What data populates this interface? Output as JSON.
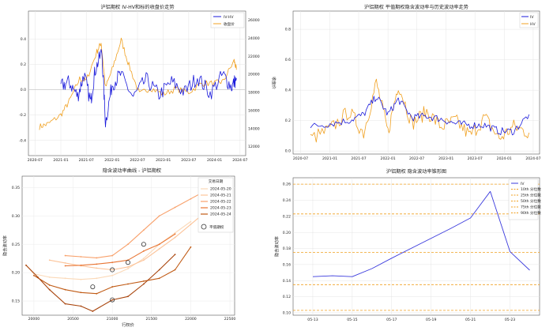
{
  "chart_data": [
    {
      "type": "line",
      "title": "沪铝期权 IV-HV和标的收盘价走势",
      "ylabel": "",
      "y2label": "收盘价",
      "x_ticks": [
        "2020-07",
        "2021-01",
        "2021-07",
        "2022-01",
        "2022-07",
        "2023-01",
        "2023-07",
        "2024-01",
        "2024-07"
      ],
      "y_ticks": [
        "-0.4",
        "-0.2",
        "0.0",
        "0.2",
        "0.4"
      ],
      "ylim": [
        -0.52,
        0.62
      ],
      "y2_ticks": [
        "12000",
        "14000",
        "16000",
        "18000",
        "20000",
        "22000",
        "24000",
        "26000"
      ],
      "y2lim": [
        11000,
        27000
      ],
      "legend": {
        "position": "top-right"
      },
      "series": [
        {
          "name": "IV-HV",
          "color": "#1a1adb",
          "x": [
            "2021-01-01",
            "2021-03-01",
            "2021-05-01",
            "2021-06-15",
            "2021-08-01",
            "2021-09-01",
            "2021-10-20",
            "2021-11-15",
            "2022-01-01",
            "2022-03-01",
            "2022-06-01",
            "2022-09-01",
            "2022-12-01",
            "2023-03-01",
            "2023-06-01",
            "2023-09-01",
            "2023-12-01",
            "2024-03-01",
            "2024-05-01",
            "2024-06-05"
          ],
          "values": [
            0.03,
            0.06,
            -0.05,
            0.12,
            -0.1,
            0.15,
            0.3,
            -0.26,
            0.04,
            0.12,
            -0.06,
            0.08,
            -0.04,
            0.06,
            -0.02,
            0.1,
            -0.03,
            0.12,
            0.02,
            0.09
          ]
        },
        {
          "name": "收盘价",
          "color": "#f0a020",
          "axis": "right",
          "x": [
            "2020-08-01",
            "2020-10-01",
            "2021-01-01",
            "2021-03-01",
            "2021-05-15",
            "2021-07-01",
            "2021-09-15",
            "2021-10-15",
            "2021-11-15",
            "2022-01-01",
            "2022-03-07",
            "2022-05-01",
            "2022-07-15",
            "2022-10-01",
            "2023-01-01",
            "2023-04-01",
            "2023-07-01",
            "2023-10-01",
            "2024-01-01",
            "2024-03-01",
            "2024-05-20",
            "2024-06-05"
          ],
          "values": [
            14200,
            14500,
            15500,
            17000,
            19500,
            19300,
            22500,
            23500,
            18500,
            20500,
            23800,
            21000,
            17800,
            18500,
            17800,
            18400,
            18000,
            19000,
            19000,
            19200,
            21500,
            20500
          ]
        }
      ]
    },
    {
      "type": "line",
      "title": "沪铝期权 平值期权隐含波动率与历史波动率走势",
      "x_ticks": [
        "2020-07",
        "2021-01",
        "2021-07",
        "2022-01",
        "2022-07",
        "2023-01",
        "2023-07",
        "2024-01",
        "2024-07"
      ],
      "y_ticks": [
        "0.0",
        "0.2",
        "0.4",
        "0.6",
        "0.8"
      ],
      "ylim": [
        -0.02,
        0.92
      ],
      "legend": {
        "position": "top-right"
      },
      "series": [
        {
          "name": "IV",
          "color": "#1a1adb",
          "x": [
            "2020-09-01",
            "2021-01-01",
            "2021-05-01",
            "2021-08-01",
            "2021-10-20",
            "2022-01-01",
            "2022-03-07",
            "2022-06-01",
            "2022-09-01",
            "2022-12-01",
            "2023-03-01",
            "2023-06-01",
            "2023-09-01",
            "2023-12-01",
            "2024-03-01",
            "2024-06-05"
          ],
          "values": [
            0.16,
            0.18,
            0.2,
            0.24,
            0.36,
            0.24,
            0.34,
            0.22,
            0.23,
            0.21,
            0.18,
            0.17,
            0.17,
            0.13,
            0.13,
            0.24
          ]
        },
        {
          "name": "HV",
          "color": "#f0a020",
          "x": [
            "2020-09-01",
            "2021-01-01",
            "2021-05-01",
            "2021-08-01",
            "2021-10-20",
            "2022-01-01",
            "2022-03-07",
            "2022-06-01",
            "2022-09-01",
            "2022-12-01",
            "2023-03-01",
            "2023-06-01",
            "2023-09-01",
            "2023-12-01",
            "2024-03-01",
            "2024-06-05"
          ],
          "values": [
            0.08,
            0.14,
            0.26,
            0.12,
            0.45,
            0.12,
            0.44,
            0.18,
            0.26,
            0.16,
            0.2,
            0.1,
            0.22,
            0.08,
            0.16,
            0.12
          ]
        }
      ]
    },
    {
      "type": "line",
      "title": "隐含波动率曲线 - 沪铝期权",
      "xlabel": "行权价",
      "ylabel": "隐含波动率",
      "x_ticks": [
        "20000",
        "20500",
        "21000",
        "21500",
        "22000",
        "22500"
      ],
      "xlim": [
        19850,
        22560
      ],
      "y_ticks": [
        "0.15",
        "0.20",
        "0.25",
        "0.30",
        "0.35"
      ],
      "ylim": [
        0.125,
        0.37
      ],
      "legend": {
        "position": "top-right",
        "title": "交易日期",
        "marker_label": "平值期权"
      },
      "series": [
        {
          "name": "2024-05-20",
          "color": "#fbd9b8",
          "x": [
            19900,
            20000,
            20200,
            20400,
            20600,
            20800,
            21000,
            21200,
            21400,
            21600,
            21800,
            22000
          ],
          "values": [
            0.213,
            0.198,
            0.192,
            0.19,
            0.188,
            0.19,
            0.195,
            0.207,
            0.225,
            0.25,
            0.27,
            0.29
          ]
        },
        {
          "name": "2024-05-21",
          "color": "#fcc49a",
          "x": [
            20200,
            20400,
            20600,
            20800,
            21000,
            21200,
            21400,
            21600,
            21800,
            22000,
            22200
          ],
          "values": [
            0.222,
            0.217,
            0.212,
            0.208,
            0.205,
            0.21,
            0.222,
            0.242,
            0.262,
            0.285,
            0.308
          ]
        },
        {
          "name": "2024-05-22",
          "color": "#f8a06a",
          "x": [
            20400,
            20600,
            20800,
            21000,
            21200,
            21400,
            21600,
            21800,
            22000,
            22200,
            22400
          ],
          "values": [
            0.23,
            0.228,
            0.226,
            0.23,
            0.25,
            0.275,
            0.3,
            0.315,
            0.33,
            0.345,
            0.36
          ]
        },
        {
          "name": "2024-05-23",
          "color": "#e87432",
          "x": [
            20400,
            20600,
            20800,
            21000,
            21200,
            21400,
            21600,
            21800
          ],
          "values": [
            0.212,
            0.213,
            0.215,
            0.218,
            0.222,
            0.238,
            0.25,
            0.268
          ]
        },
        {
          "name": "2024-05-24",
          "color": "#c05a14",
          "x": [
            20000,
            20200,
            20400,
            20600,
            20800,
            21000,
            21200,
            21400,
            21600,
            21800,
            22000
          ],
          "values": [
            0.195,
            0.178,
            0.17,
            0.165,
            0.163,
            0.175,
            0.18,
            0.185,
            0.19,
            0.205,
            0.245
          ]
        },
        {
          "name": "",
          "color": "#a8440c",
          "x": [
            19900,
            20050,
            20200,
            20400,
            20600,
            20750,
            21000,
            21200,
            21400,
            21600,
            21800
          ],
          "values": [
            0.213,
            0.192,
            0.17,
            0.145,
            0.141,
            0.132,
            0.152,
            0.158,
            0.18,
            0.205,
            0.232
          ]
        }
      ],
      "atm_markers": [
        {
          "x": 20750,
          "y": 0.175
        },
        {
          "x": 21000,
          "y": 0.205
        },
        {
          "x": 21000,
          "y": 0.152
        },
        {
          "x": 21200,
          "y": 0.218
        },
        {
          "x": 21400,
          "y": 0.25
        }
      ]
    },
    {
      "type": "line",
      "title": "沪铝期权 隐含波动率锥形图",
      "ylabel": "隐含波动率",
      "x_ticks": [
        "05-13",
        "05-15",
        "05-17",
        "05-19",
        "05-21",
        "05-23"
      ],
      "x_dates": [
        "2024-05-13",
        "2024-05-15",
        "2024-05-17",
        "2024-05-19",
        "2024-05-21",
        "2024-05-23"
      ],
      "y_ticks": [
        "0.10",
        "0.12",
        "0.14",
        "0.16",
        "0.18",
        "0.20",
        "0.22",
        "0.24",
        "0.26"
      ],
      "ylim": [
        0.097,
        0.268
      ],
      "legend": {
        "position": "top-right"
      },
      "series": [
        {
          "name": "IV",
          "color": "#3b3bdd",
          "x": [
            "2024-05-13",
            "2024-05-14",
            "2024-05-15",
            "2024-05-16",
            "2024-05-17",
            "2024-05-20",
            "2024-05-21",
            "2024-05-22",
            "2024-05-23",
            "2024-05-24"
          ],
          "values": [
            0.145,
            0.146,
            0.145,
            0.155,
            0.168,
            0.205,
            0.218,
            0.251,
            0.176,
            0.153
          ]
        }
      ],
      "percentile_lines": [
        {
          "name": "90th 分位数",
          "value": 0.26
        },
        {
          "name": "75th 分位数",
          "value": 0.223
        },
        {
          "name": "50th 分位数",
          "value": 0.175
        },
        {
          "name": "25th 分位数",
          "value": 0.135
        },
        {
          "name": "10th 分位数",
          "value": 0.103
        }
      ],
      "percentile_color": "#f0a020"
    }
  ]
}
